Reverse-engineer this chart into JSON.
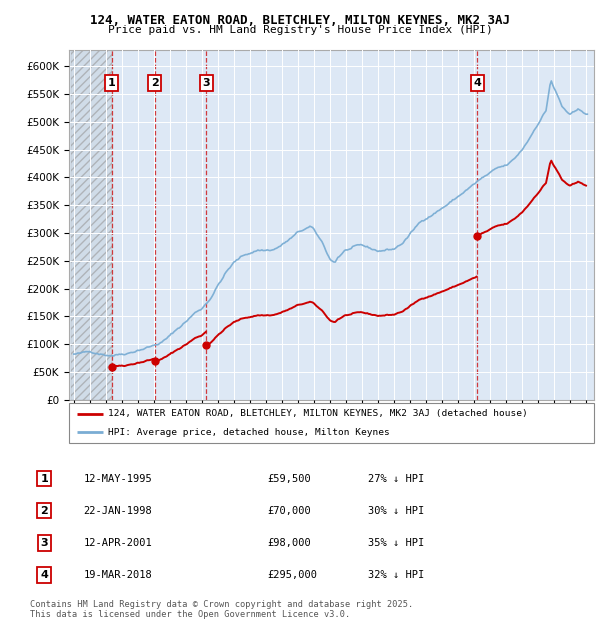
{
  "title_line1": "124, WATER EATON ROAD, BLETCHLEY, MILTON KEYNES, MK2 3AJ",
  "title_line2": "Price paid vs. HM Land Registry's House Price Index (HPI)",
  "hpi_color": "#7aadd4",
  "sale_color": "#cc0000",
  "plot_bg": "#dde8f5",
  "transactions": [
    {
      "num": 1,
      "date": "12-MAY-1995",
      "year": 1995.37,
      "price": 59500,
      "pct": "27%",
      "dir": "↓"
    },
    {
      "num": 2,
      "date": "22-JAN-1998",
      "year": 1998.06,
      "price": 70000,
      "pct": "30%",
      "dir": "↓"
    },
    {
      "num": 3,
      "date": "12-APR-2001",
      "year": 2001.28,
      "price": 98000,
      "pct": "35%",
      "dir": "↓"
    },
    {
      "num": 4,
      "date": "19-MAR-2018",
      "year": 2018.21,
      "price": 295000,
      "pct": "32%",
      "dir": "↓"
    }
  ],
  "legend_line1": "124, WATER EATON ROAD, BLETCHLEY, MILTON KEYNES, MK2 3AJ (detached house)",
  "legend_line2": "HPI: Average price, detached house, Milton Keynes",
  "footer_line1": "Contains HM Land Registry data © Crown copyright and database right 2025.",
  "footer_line2": "This data is licensed under the Open Government Licence v3.0.",
  "xlim_start": 1993.0,
  "xlim_end": 2025.5,
  "ylim_min": 0,
  "ylim_max": 630000,
  "yticks": [
    0,
    50000,
    100000,
    150000,
    200000,
    250000,
    300000,
    350000,
    400000,
    450000,
    500000,
    550000,
    600000
  ]
}
